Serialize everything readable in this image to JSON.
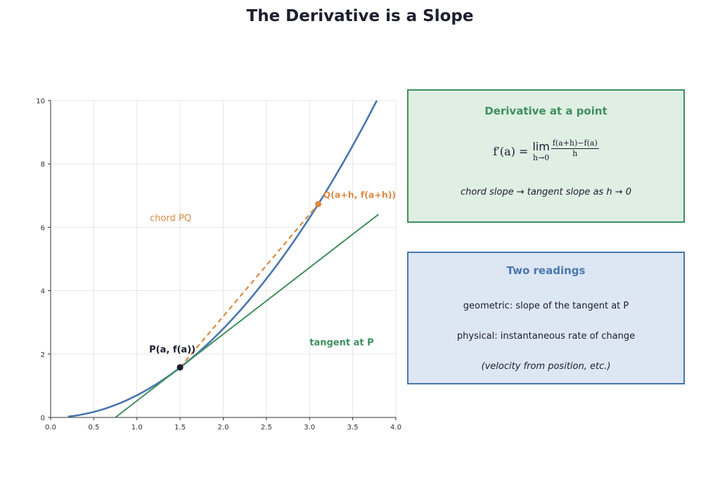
{
  "title": "The Derivative is a Slope",
  "colors": {
    "curve": "#4a77ad",
    "chord": "#d98a44",
    "tangent": "#3f8f5e",
    "point": "#1c1c2e",
    "grid": "#e6e6e6"
  },
  "chart_data": {
    "type": "line",
    "function": "f(x) = 0.7 x^2",
    "series": [
      {
        "x": [
          0.2,
          0.5,
          1.0,
          1.5,
          2.0,
          2.5,
          3.0,
          3.5,
          3.78
        ],
        "values": [
          0.03,
          0.18,
          0.7,
          1.58,
          2.8,
          4.38,
          6.3,
          8.58,
          10.0
        ]
      },
      {
        "x": [
          1.5,
          3.1
        ],
        "values": [
          1.58,
          6.73
        ]
      },
      {
        "x": [
          0.75,
          3.8
        ],
        "values": [
          0.0,
          6.41
        ]
      }
    ],
    "points": [
      {
        "label": "P(a, f(a))",
        "x": 1.5,
        "y": 1.58
      },
      {
        "label": "Q(a+h, f(a+h))",
        "x": 3.1,
        "y": 6.73
      }
    ],
    "annotations": [
      "chord PQ",
      "tangent at P"
    ],
    "xlim": [
      0,
      4.0
    ],
    "ylim": [
      0,
      10
    ],
    "xticks": [
      "0.0",
      "0.5",
      "1.0",
      "1.5",
      "2.0",
      "2.5",
      "3.0",
      "3.5",
      "4.0"
    ],
    "yticks": [
      "0",
      "2",
      "4",
      "6",
      "8",
      "10"
    ],
    "grid": true
  },
  "panel_derivative": {
    "title": "Derivative at a point",
    "formula_lhs": "f′(a) =",
    "formula_lim": "lim",
    "formula_sub": "h→0",
    "formula_num": "f(a+h)−f(a)",
    "formula_den": "h",
    "note": "chord slope → tangent slope as h → 0"
  },
  "panel_readings": {
    "title": "Two readings",
    "geometric": "geometric: slope of the tangent at P",
    "physical": "physical: instantaneous rate of change",
    "example": "(velocity from position, etc.)"
  }
}
